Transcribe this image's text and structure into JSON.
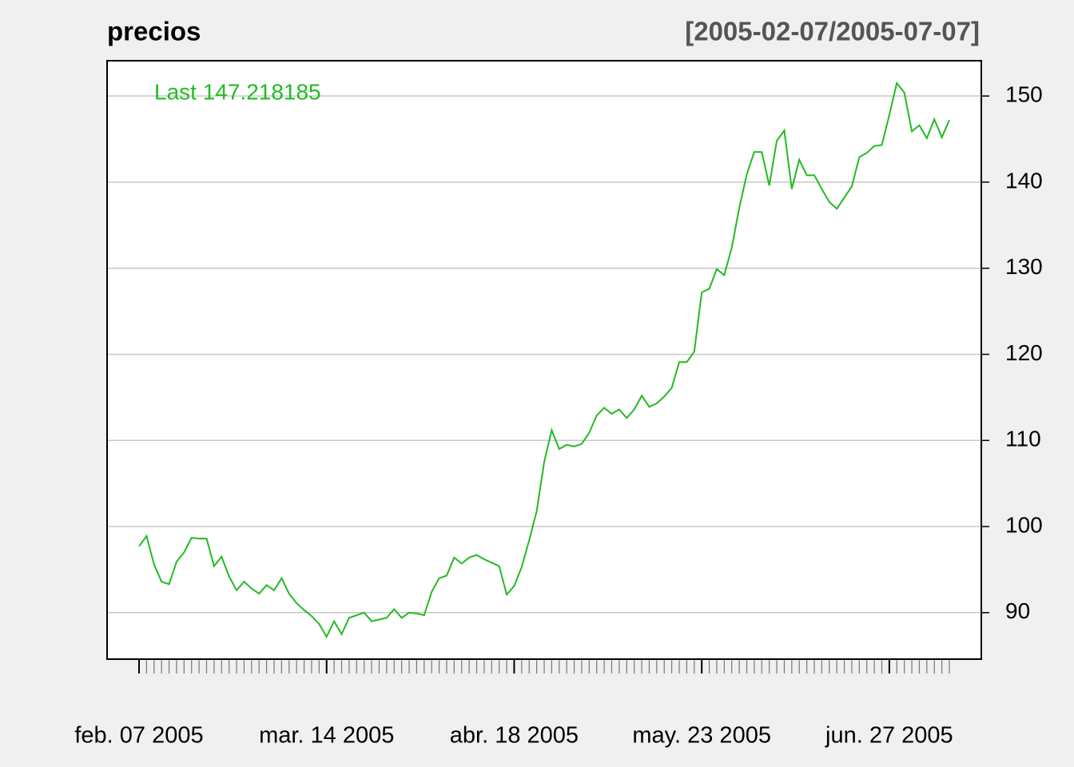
{
  "chart_data": {
    "type": "line",
    "title": "precios",
    "subtitle": "[2005-02-07/2005-07-07]",
    "annotation": "Last 147.218185",
    "categories": [
      "feb. 07 2005",
      null,
      null,
      null,
      null,
      null,
      null,
      null,
      null,
      null,
      null,
      null,
      null,
      null,
      null,
      null,
      null,
      null,
      null,
      null,
      null,
      null,
      null,
      null,
      null,
      "mar. 14 2005",
      null,
      null,
      null,
      null,
      null,
      null,
      null,
      null,
      null,
      null,
      null,
      null,
      null,
      null,
      null,
      null,
      null,
      null,
      null,
      null,
      null,
      null,
      null,
      null,
      "abr. 18 2005",
      null,
      null,
      null,
      null,
      null,
      null,
      null,
      null,
      null,
      null,
      null,
      null,
      null,
      null,
      null,
      null,
      null,
      null,
      null,
      null,
      null,
      null,
      null,
      null,
      "may. 23 2005",
      null,
      null,
      null,
      null,
      null,
      null,
      null,
      null,
      null,
      null,
      null,
      null,
      null,
      null,
      null,
      null,
      null,
      null,
      null,
      null,
      null,
      null,
      null,
      null,
      "jun. 27 2005",
      null,
      null,
      null,
      null,
      null,
      null,
      null,
      null
    ],
    "series": [
      {
        "name": "precios",
        "color": "#22bb22",
        "values": [
          97.7,
          98.9,
          95.6,
          93.6,
          93.3,
          95.9,
          97.0,
          98.7,
          98.6,
          98.6,
          95.4,
          96.5,
          94.2,
          92.6,
          93.6,
          92.8,
          92.2,
          93.2,
          92.6,
          94.0,
          92.2,
          91.1,
          90.3,
          89.6,
          88.7,
          87.2,
          89.0,
          87.5,
          89.4,
          89.7,
          90.0,
          89.0,
          89.2,
          89.4,
          90.4,
          89.4,
          90.0,
          89.9,
          89.7,
          92.4,
          94.0,
          94.3,
          96.4,
          95.7,
          96.4,
          96.7,
          96.2,
          95.8,
          95.4,
          92.1,
          93.1,
          95.3,
          98.4,
          101.8,
          107.5,
          111.2,
          109.0,
          109.5,
          109.3,
          109.6,
          110.9,
          112.9,
          113.8,
          113.1,
          113.6,
          112.6,
          113.6,
          115.2,
          113.9,
          114.3,
          115.1,
          116.1,
          119.1,
          119.1,
          120.3,
          127.2,
          127.6,
          129.9,
          129.2,
          132.4,
          137.0,
          140.9,
          143.5,
          143.5,
          139.6,
          144.8,
          146.0,
          139.2,
          142.6,
          140.8,
          140.8,
          139.2,
          137.7,
          136.9,
          138.2,
          139.5,
          142.9,
          143.4,
          144.2,
          144.3,
          147.8,
          151.5,
          150.4,
          145.9,
          146.6,
          145.1,
          147.3,
          145.2,
          147.218185
        ]
      }
    ],
    "ylim": [
      84.6,
      154.1
    ],
    "yticks": [
      90,
      100,
      110,
      120,
      130,
      140,
      150
    ],
    "grid": true
  }
}
